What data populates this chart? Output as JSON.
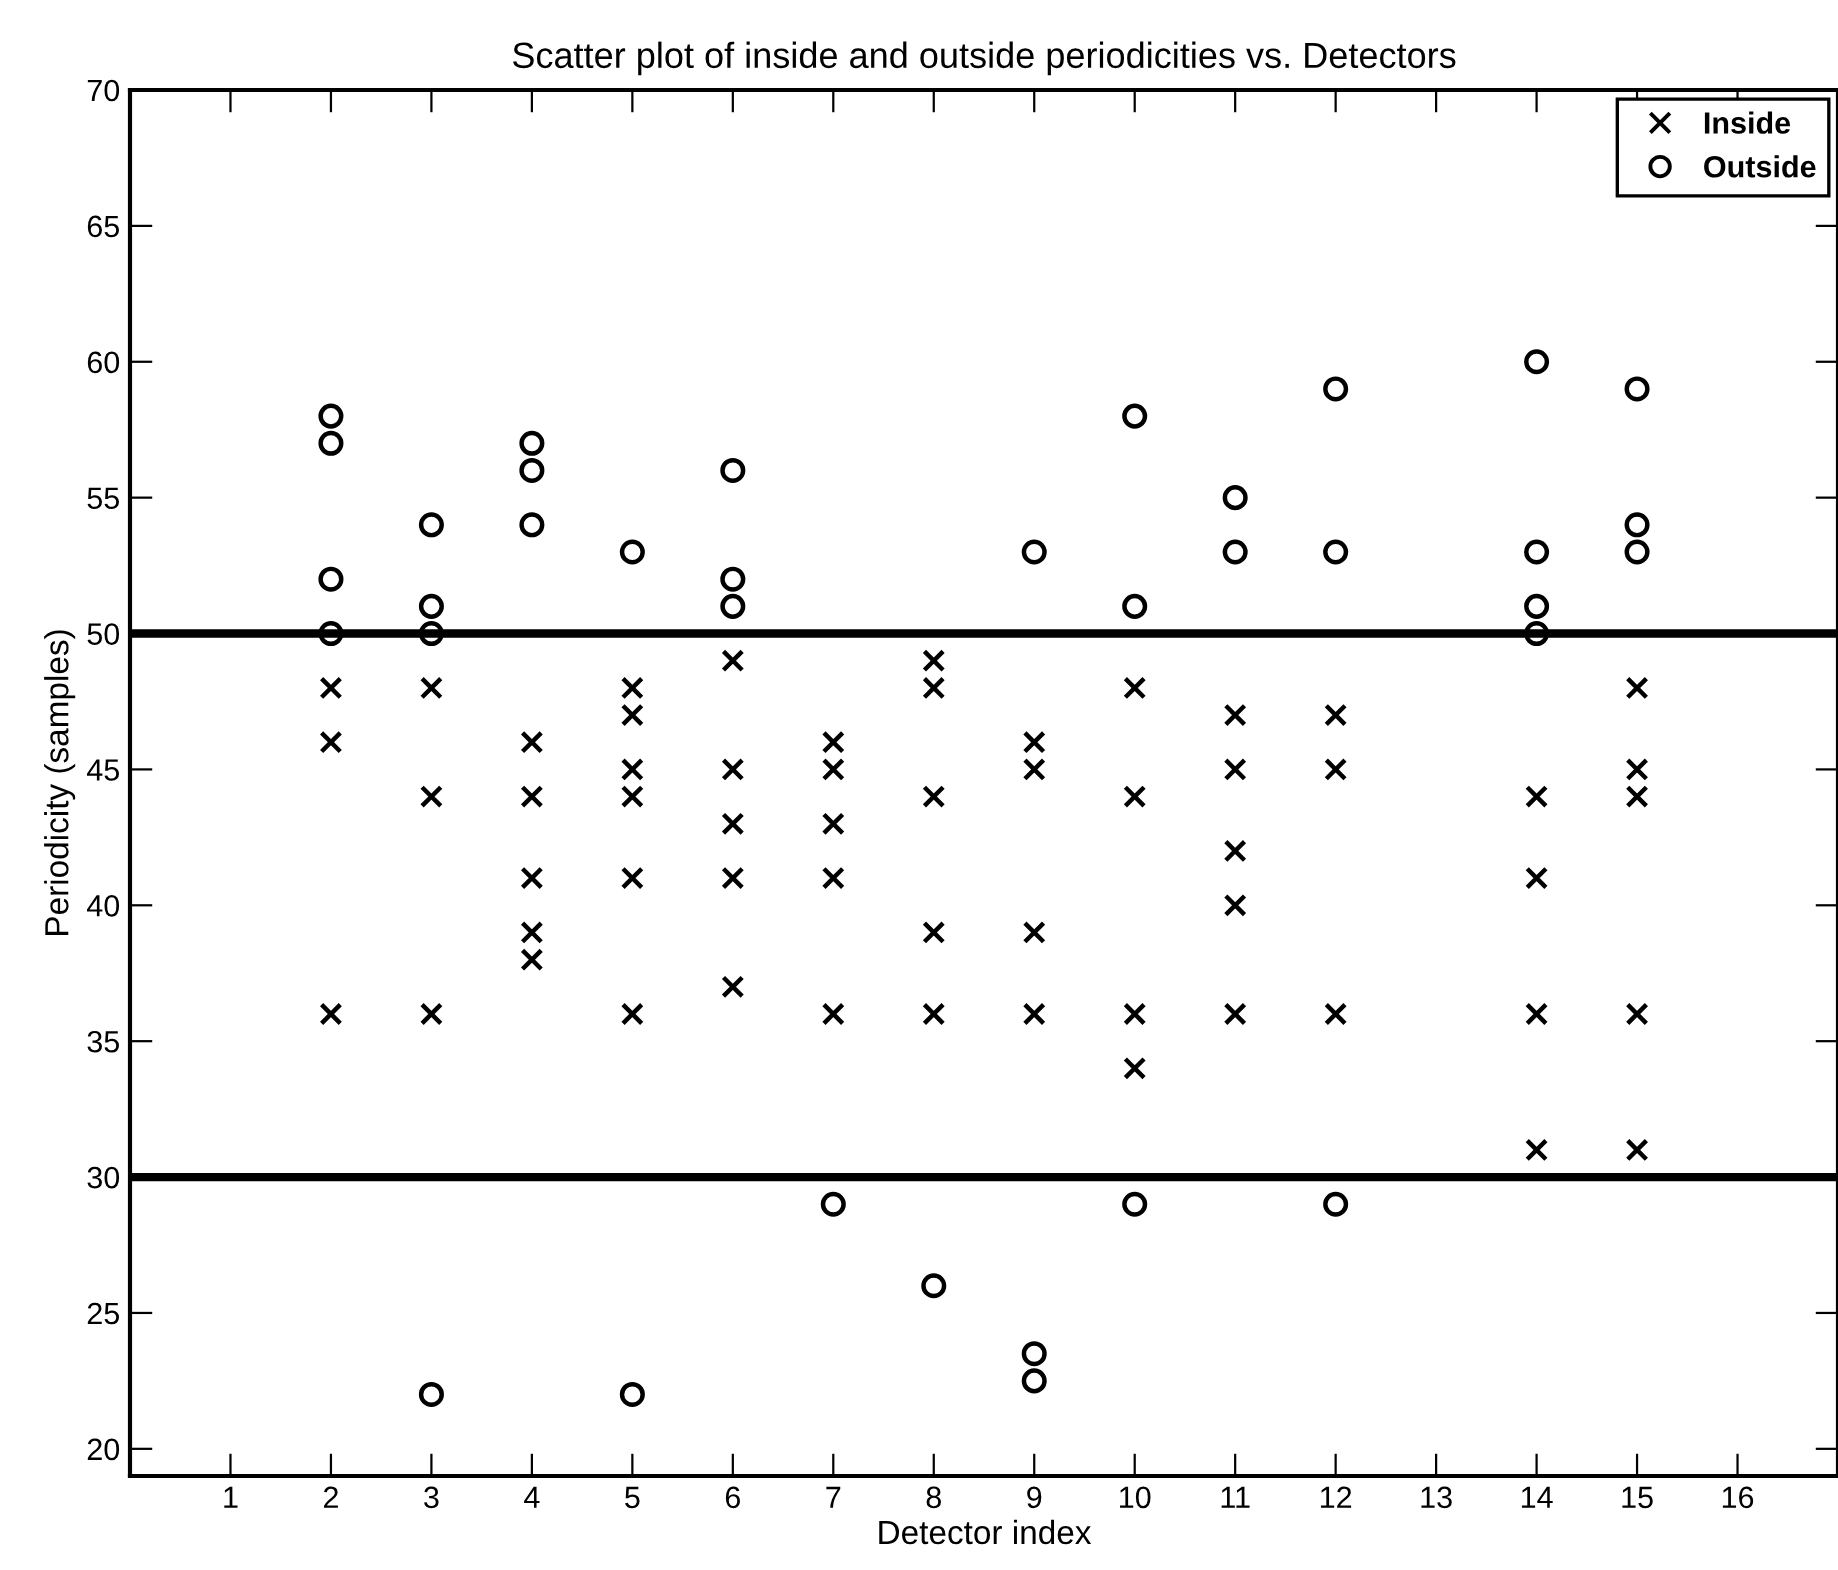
{
  "chart_data": {
    "type": "scatter",
    "title": "Scatter plot of inside and outside periodicities vs. Detectors",
    "xlabel": "Detector index",
    "ylabel": "Periodicity (samples)",
    "xlim": [
      0,
      17
    ],
    "ylim": [
      19,
      70
    ],
    "xticks": [
      1,
      2,
      3,
      4,
      5,
      6,
      7,
      8,
      9,
      10,
      11,
      12,
      13,
      14,
      15,
      16
    ],
    "yticks": [
      20,
      25,
      30,
      35,
      40,
      45,
      50,
      55,
      60,
      65,
      70
    ],
    "grid": false,
    "legend": "top right",
    "ref_lines": [
      {
        "axis": "y",
        "value": 30,
        "color": "#000000"
      },
      {
        "axis": "y",
        "value": 50,
        "color": "#000000"
      }
    ],
    "series": [
      {
        "name": "Inside",
        "color": "#000000",
        "marker": "cross",
        "x": [
          2,
          2,
          2,
          3,
          3,
          3,
          4,
          4,
          4,
          4,
          4,
          5,
          5,
          5,
          5,
          5,
          5,
          6,
          6,
          6,
          6,
          6,
          7,
          7,
          7,
          7,
          7,
          8,
          8,
          8,
          8,
          8,
          9,
          9,
          9,
          9,
          10,
          10,
          10,
          10,
          11,
          11,
          11,
          11,
          11,
          12,
          12,
          12,
          14,
          14,
          14,
          14,
          15,
          15,
          15,
          15,
          15
        ],
        "values": [
          48,
          46,
          36,
          48,
          44,
          36,
          46,
          44,
          41,
          39,
          38,
          48,
          47,
          45,
          44,
          41,
          36,
          49,
          45,
          43,
          41,
          37,
          46,
          45,
          43,
          41,
          36,
          49,
          48,
          44,
          39,
          36,
          46,
          45,
          39,
          36,
          48,
          44,
          36,
          34,
          47,
          45,
          42,
          40,
          36,
          47,
          45,
          36,
          44,
          41,
          36,
          31,
          48,
          45,
          44,
          36,
          31
        ]
      },
      {
        "name": "Outside",
        "color": "#000000",
        "marker": "circle",
        "x": [
          2,
          2,
          2,
          2,
          3,
          3,
          3,
          3,
          4,
          4,
          4,
          5,
          5,
          6,
          6,
          6,
          7,
          8,
          9,
          9,
          9,
          10,
          10,
          10,
          11,
          11,
          12,
          12,
          12,
          14,
          14,
          14,
          14,
          15,
          15,
          15
        ],
        "values": [
          58,
          57,
          52,
          50,
          54,
          51,
          50,
          22,
          57,
          56,
          54,
          53,
          22,
          56,
          52,
          51,
          29,
          26,
          53,
          23.5,
          22.5,
          58,
          51,
          29,
          55,
          53,
          59,
          53,
          29,
          60,
          53,
          51,
          50,
          59,
          54,
          53
        ]
      }
    ]
  }
}
